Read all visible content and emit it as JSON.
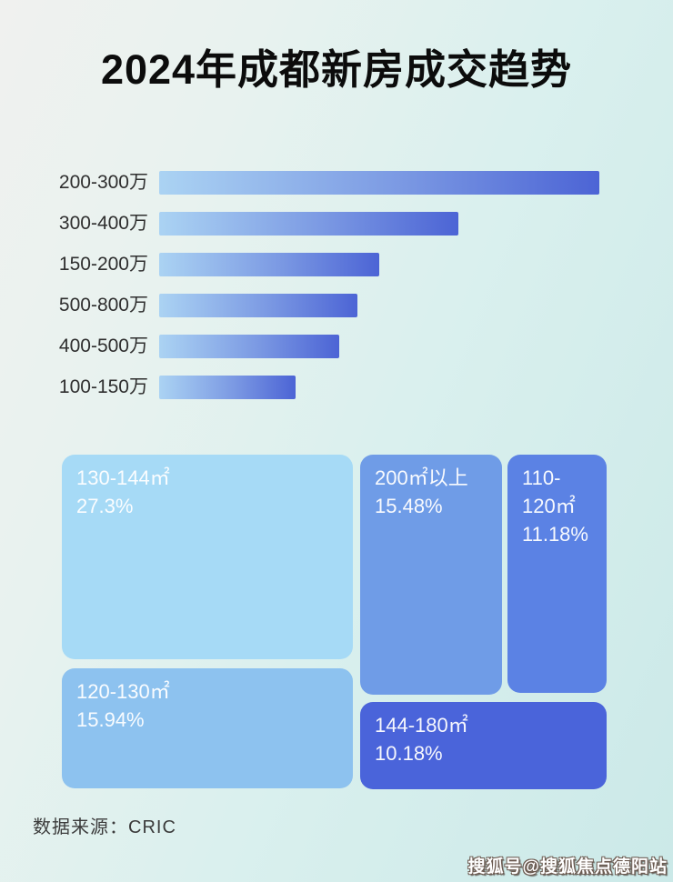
{
  "page": {
    "title": "2024年成都新房成交趋势"
  },
  "colors": {
    "background_start": "#f0f1ef",
    "background_end": "#cbe9e8",
    "bar_gradient_start": "#abd3f3",
    "bar_gradient_end": "#4c64d5",
    "title_text": "#0c0c0c",
    "bar_label_text": "#2f2f2f",
    "treemap_text": "#ffffff",
    "treemap_130_144": "#a6daf6",
    "treemap_120_130": "#8dc2ef",
    "treemap_200_plus": "#6f9ce7",
    "treemap_110_120": "#5b82e4",
    "treemap_144_180": "#4a64da",
    "footer_text": "#3b3b3b",
    "watermark_text": "#ffffff"
  },
  "bar_chart": {
    "rows": [
      {
        "label": "200-300万",
        "length_pct": 100
      },
      {
        "label": "300-400万",
        "length_pct": 68
      },
      {
        "label": "150-200万",
        "length_pct": 50
      },
      {
        "label": "500-800万",
        "length_pct": 45
      },
      {
        "label": "400-500万",
        "length_pct": 41
      },
      {
        "label": "100-150万",
        "length_pct": 31
      }
    ]
  },
  "treemap": {
    "boxes": [
      {
        "label": "130-144㎡",
        "value_label": "27.3%",
        "value": 27.3
      },
      {
        "label": "120-130㎡",
        "value_label": "15.94%",
        "value": 15.94
      },
      {
        "label": "200㎡以上",
        "value_label": "15.48%",
        "value": 15.48
      },
      {
        "label": "110-120㎡",
        "value_label": "11.18%",
        "value": 11.18
      },
      {
        "label": "144-180㎡",
        "value_label": "10.18%",
        "value": 10.18
      }
    ]
  },
  "footer": {
    "source": "数据来源：CRIC"
  },
  "watermark": {
    "text": "搜狐号@搜狐焦点德阳站"
  },
  "chart_data": [
    {
      "type": "bar",
      "orientation": "horizontal",
      "title": "2024年成都新房成交趋势",
      "categories": [
        "200-300万",
        "300-400万",
        "150-200万",
        "500-800万",
        "400-500万",
        "100-150万"
      ],
      "values": [
        100,
        68,
        50,
        45,
        41,
        31
      ],
      "values_note": "bars carry no numeric labels in the image; values are estimated bar lengths as percent of the longest bar",
      "xlabel": "",
      "ylabel": "",
      "legend": false,
      "grid": false
    },
    {
      "type": "treemap",
      "title": "",
      "items": [
        {
          "label": "130-144㎡",
          "value_pct": 27.3
        },
        {
          "label": "200㎡以上",
          "value_pct": 15.48
        },
        {
          "label": "120-130㎡",
          "value_pct": 15.94
        },
        {
          "label": "110-120㎡",
          "value_pct": 11.18
        },
        {
          "label": "144-180㎡",
          "value_pct": 10.18
        }
      ],
      "legend": false
    }
  ]
}
